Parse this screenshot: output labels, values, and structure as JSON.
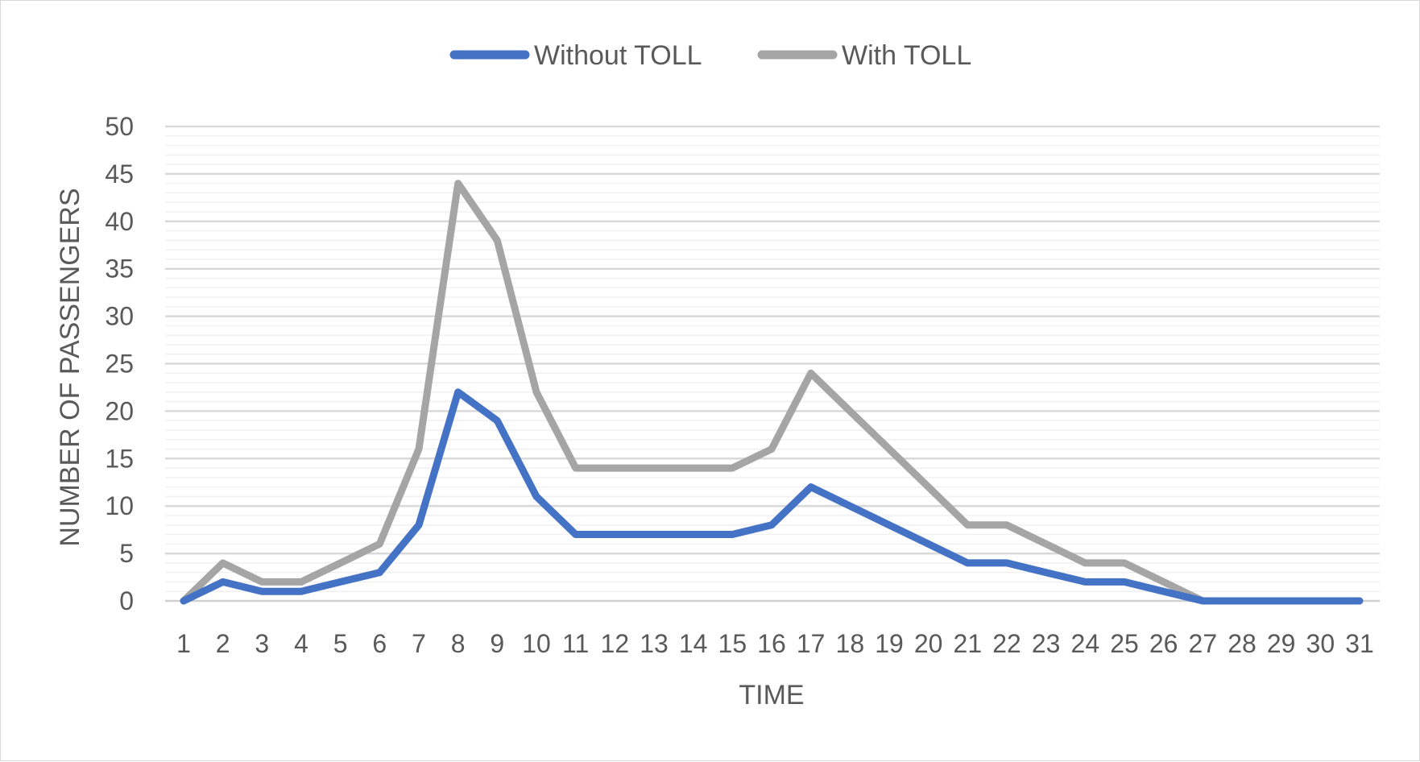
{
  "chart_data": {
    "type": "line",
    "x": [
      1,
      2,
      3,
      4,
      5,
      6,
      7,
      8,
      9,
      10,
      11,
      12,
      13,
      14,
      15,
      16,
      17,
      18,
      19,
      20,
      21,
      22,
      23,
      24,
      25,
      26,
      27,
      28,
      29,
      30,
      31
    ],
    "series": [
      {
        "name": "Without TOLL",
        "color": "#4472c4",
        "values": [
          0,
          2,
          1,
          1,
          2,
          3,
          8,
          22,
          19,
          11,
          7,
          7,
          7,
          7,
          7,
          8,
          12,
          10,
          8,
          6,
          4,
          4,
          3,
          2,
          2,
          1,
          0,
          0,
          0,
          0,
          0
        ]
      },
      {
        "name": "With TOLL",
        "color": "#a5a5a5",
        "values": [
          0,
          4,
          2,
          2,
          4,
          6,
          16,
          44,
          38,
          22,
          14,
          14,
          14,
          14,
          14,
          16,
          24,
          20,
          16,
          12,
          8,
          8,
          6,
          4,
          4,
          2,
          0,
          0,
          0,
          0,
          0
        ]
      }
    ],
    "xlabel": "TIME",
    "ylabel": "NUMBER OF PASSENGERS",
    "ylim": [
      0,
      50
    ],
    "yticks": [
      "0",
      "5",
      "10",
      "15",
      "20",
      "25",
      "30",
      "35",
      "40",
      "45",
      "50"
    ],
    "major_grid": true,
    "minor_grid": true,
    "legend": "top-center"
  }
}
